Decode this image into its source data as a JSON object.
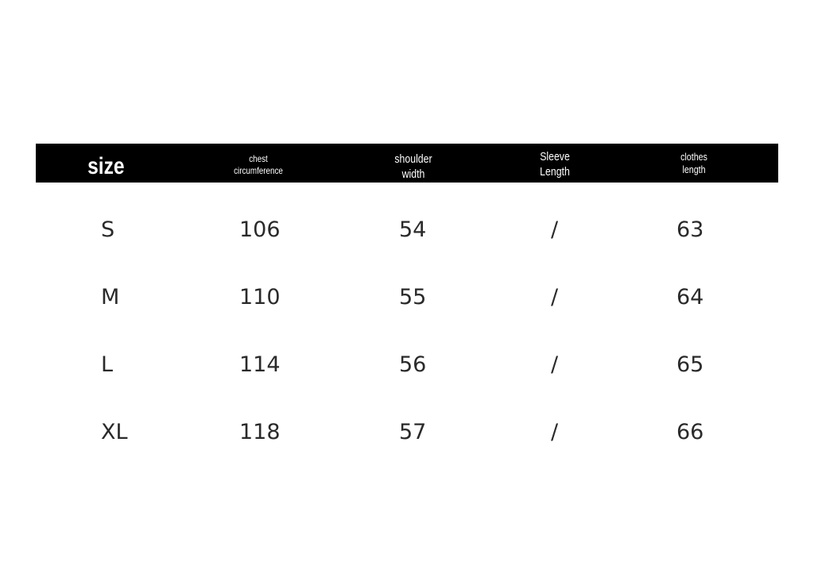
{
  "headers": [
    "size",
    "chest circumference",
    "shoulder width",
    "Sleeve Length",
    "clothes length"
  ],
  "header_lines": [
    [
      "size"
    ],
    [
      "chest",
      "circumference"
    ],
    [
      "shoulder",
      "width"
    ],
    [
      "Sleeve",
      "Length"
    ],
    [
      "clothes",
      "length"
    ]
  ],
  "rows": [
    [
      "S",
      "106",
      "54",
      "/",
      "63"
    ],
    [
      "M",
      "110",
      "55",
      "/",
      "64"
    ],
    [
      "L",
      "114",
      "56",
      "/",
      "65"
    ],
    [
      "XL",
      "118",
      "57",
      "/",
      "66"
    ]
  ]
}
